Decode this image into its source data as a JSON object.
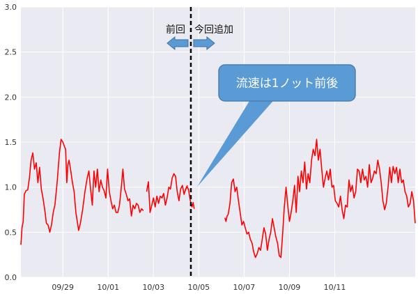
{
  "chart_data": {
    "type": "line",
    "title": "",
    "xlabel": "",
    "ylabel": "",
    "ylim": [
      0.0,
      3.0
    ],
    "xlim": [
      "09/27 19:00",
      "10/12 12:00"
    ],
    "grid": true,
    "background": "#eaeaf2",
    "y_ticks": [
      "0.0",
      "0.5",
      "1.0",
      "1.5",
      "2.0",
      "2.5",
      "3.0"
    ],
    "x_tick_labels": [
      "09/29",
      "10/01",
      "10/03",
      "10/05",
      "10/07",
      "10/09",
      "10/11"
    ],
    "series": [
      {
        "color": "#ff0000",
        "segments": [
          [
            [
              0.0,
              0.36
            ],
            [
              0.1,
              0.55
            ],
            [
              0.2,
              0.62
            ],
            [
              0.3,
              0.92
            ],
            [
              0.45,
              0.96
            ],
            [
              0.6,
              0.97
            ],
            [
              0.75,
              1.1
            ],
            [
              0.9,
              1.3
            ],
            [
              1.05,
              1.38
            ],
            [
              1.2,
              1.2
            ],
            [
              1.35,
              1.27
            ],
            [
              1.5,
              1.05
            ],
            [
              1.65,
              1.22
            ],
            [
              1.8,
              0.98
            ],
            [
              1.95,
              0.88
            ],
            [
              2.1,
              0.75
            ],
            [
              2.25,
              0.6
            ],
            [
              2.4,
              0.58
            ],
            [
              2.55,
              0.5
            ],
            [
              2.7,
              0.58
            ],
            [
              2.85,
              0.72
            ],
            [
              3.0,
              0.8
            ],
            [
              3.2,
              1.05
            ],
            [
              3.4,
              1.38
            ],
            [
              3.55,
              1.53
            ],
            [
              3.7,
              1.5
            ],
            [
              3.85,
              1.45
            ],
            [
              3.95,
              1.42
            ],
            [
              4.05,
              1.05
            ],
            [
              4.15,
              1.25
            ],
            [
              4.25,
              1.3
            ],
            [
              4.4,
              1.18
            ],
            [
              4.55,
              1.05
            ],
            [
              4.7,
              0.95
            ],
            [
              4.85,
              0.72
            ],
            [
              5.0,
              0.6
            ],
            [
              5.1,
              0.52
            ],
            [
              5.25,
              0.6
            ],
            [
              5.45,
              0.75
            ],
            [
              5.65,
              0.95
            ],
            [
              5.85,
              1.1
            ],
            [
              6.0,
              1.18
            ],
            [
              6.15,
              0.98
            ],
            [
              6.3,
              0.8
            ],
            [
              6.45,
              1.18
            ],
            [
              6.6,
              1.0
            ],
            [
              6.75,
              1.2
            ],
            [
              6.9,
              0.95
            ],
            [
              7.05,
              1.08
            ],
            [
              7.2,
              1.0
            ],
            [
              7.35,
              0.96
            ],
            [
              7.5,
              0.88
            ],
            [
              7.65,
              1.2
            ],
            [
              7.8,
              0.95
            ],
            [
              7.95,
              0.85
            ],
            [
              8.1,
              0.76
            ],
            [
              8.25,
              0.8
            ],
            [
              8.4,
              0.72
            ],
            [
              8.55,
              0.72
            ],
            [
              8.7,
              0.8
            ],
            [
              8.85,
              0.98
            ],
            [
              9.0,
              1.2
            ],
            [
              9.15,
              0.98
            ],
            [
              9.3,
              0.92
            ],
            [
              9.45,
              0.85
            ],
            [
              9.6,
              0.87
            ],
            [
              9.75,
              0.68
            ],
            [
              9.9,
              0.8
            ],
            [
              10.05,
              0.76
            ],
            [
              10.2,
              0.82
            ],
            [
              10.35,
              0.8
            ],
            [
              10.5,
              0.72
            ],
            [
              10.65,
              0.76
            ],
            [
              10.8,
              0.74
            ]
          ],
          [
            [
              11.1,
              0.95
            ],
            [
              11.25,
              1.06
            ],
            [
              11.4,
              0.72
            ],
            [
              11.55,
              0.8
            ],
            [
              11.7,
              0.88
            ],
            [
              11.85,
              0.78
            ],
            [
              12.0,
              0.9
            ],
            [
              12.15,
              0.82
            ],
            [
              12.3,
              0.9
            ],
            [
              12.45,
              0.88
            ],
            [
              12.6,
              0.93
            ],
            [
              12.75,
              0.8
            ],
            [
              12.9,
              0.88
            ],
            [
              13.05,
              1.0
            ],
            [
              13.2,
              0.98
            ],
            [
              13.35,
              1.1
            ],
            [
              13.5,
              1.15
            ],
            [
              13.65,
              1.12
            ],
            [
              13.8,
              0.95
            ],
            [
              13.95,
              0.85
            ],
            [
              14.1,
              0.98
            ],
            [
              14.25,
              1.02
            ],
            [
              14.4,
              0.92
            ],
            [
              14.55,
              0.98
            ],
            [
              14.7,
              1.02
            ]
          ],
          [
            [
              14.5,
              0.96
            ],
            [
              14.65,
              1.01
            ],
            [
              14.8,
              0.97
            ],
            [
              14.95,
              0.85
            ],
            [
              15.1,
              0.78
            ],
            [
              15.2,
              0.83
            ],
            [
              15.3,
              0.76
            ]
          ],
          [
            [
              18.0,
              0.66
            ],
            [
              18.1,
              0.62
            ],
            [
              18.2,
              0.68
            ],
            [
              18.3,
              0.7
            ],
            [
              18.45,
              0.82
            ],
            [
              18.6,
              1.05
            ],
            [
              18.75,
              1.09
            ],
            [
              18.9,
              0.95
            ],
            [
              19.05,
              1.0
            ],
            [
              19.2,
              0.85
            ],
            [
              19.35,
              0.72
            ],
            [
              19.5,
              0.58
            ],
            [
              19.65,
              0.62
            ],
            [
              19.8,
              0.55
            ],
            [
              19.95,
              0.48
            ],
            [
              20.1,
              0.5
            ],
            [
              20.25,
              0.42
            ],
            [
              20.4,
              0.38
            ],
            [
              20.55,
              0.28
            ],
            [
              20.7,
              0.22
            ],
            [
              20.85,
              0.26
            ],
            [
              21.0,
              0.33
            ],
            [
              21.15,
              0.3
            ],
            [
              21.3,
              0.42
            ],
            [
              21.45,
              0.55
            ],
            [
              21.6,
              0.48
            ],
            [
              21.75,
              0.3
            ],
            [
              21.9,
              0.42
            ],
            [
              22.05,
              0.5
            ],
            [
              22.2,
              0.65
            ],
            [
              22.35,
              0.55
            ],
            [
              22.5,
              0.45
            ],
            [
              22.65,
              0.38
            ],
            [
              22.8,
              0.24
            ],
            [
              22.95,
              0.22
            ],
            [
              23.1,
              0.48
            ],
            [
              23.25,
              0.78
            ],
            [
              23.4,
              1.0
            ],
            [
              23.55,
              0.8
            ],
            [
              23.7,
              0.62
            ],
            [
              23.85,
              0.72
            ],
            [
              24.0,
              0.85
            ],
            [
              24.15,
              1.02
            ],
            [
              24.3,
              0.72
            ],
            [
              24.45,
              1.12
            ],
            [
              24.6,
              0.95
            ],
            [
              24.75,
              1.18
            ],
            [
              24.9,
              1.05
            ],
            [
              25.05,
              1.28
            ],
            [
              25.2,
              0.98
            ],
            [
              25.35,
              1.15
            ],
            [
              25.5,
              1.05
            ],
            [
              25.65,
              1.3
            ],
            [
              25.8,
              1.42
            ],
            [
              25.95,
              1.35
            ],
            [
              26.1,
              1.53
            ],
            [
              26.25,
              1.3
            ],
            [
              26.4,
              1.42
            ],
            [
              26.55,
              1.2
            ],
            [
              26.7,
              1.0
            ],
            [
              26.85,
              1.1
            ],
            [
              27.0,
              1.18
            ],
            [
              27.15,
              1.08
            ],
            [
              27.3,
              1.2
            ],
            [
              27.45,
              1.0
            ],
            [
              27.6,
              1.02
            ],
            [
              27.75,
              0.85
            ],
            [
              27.9,
              0.82
            ],
            [
              28.05,
              0.78
            ],
            [
              28.2,
              0.9
            ],
            [
              28.35,
              0.75
            ],
            [
              28.5,
              0.65
            ],
            [
              28.65,
              0.8
            ],
            [
              28.8,
              0.78
            ],
            [
              28.95,
              1.08
            ],
            [
              29.1,
              0.95
            ],
            [
              29.25,
              1.02
            ],
            [
              29.4,
              0.88
            ],
            [
              29.55,
              0.95
            ],
            [
              29.7,
              1.2
            ],
            [
              29.85,
              1.18
            ],
            [
              30.0,
              1.05
            ],
            [
              30.15,
              1.2
            ],
            [
              30.3,
              1.08
            ],
            [
              30.45,
              1.12
            ],
            [
              30.6,
              1.0
            ],
            [
              30.75,
              1.25
            ],
            [
              30.9,
              1.05
            ],
            [
              31.05,
              1.1
            ],
            [
              31.2,
              1.18
            ],
            [
              31.35,
              1.15
            ],
            [
              31.5,
              1.3
            ],
            [
              31.65,
              1.2
            ],
            [
              31.8,
              1.05
            ],
            [
              31.95,
              0.85
            ],
            [
              32.1,
              0.75
            ],
            [
              32.25,
              0.82
            ],
            [
              32.4,
              1.0
            ],
            [
              32.55,
              1.22
            ],
            [
              32.7,
              1.05
            ],
            [
              32.85,
              1.23
            ],
            [
              33.0,
              1.15
            ],
            [
              33.15,
              1.22
            ],
            [
              33.3,
              1.05
            ],
            [
              33.45,
              1.2
            ],
            [
              33.6,
              1.05
            ],
            [
              33.75,
              1.08
            ],
            [
              33.9,
              0.95
            ],
            [
              34.05,
              0.9
            ],
            [
              34.2,
              0.78
            ],
            [
              34.35,
              0.82
            ],
            [
              34.5,
              0.95
            ],
            [
              34.65,
              0.85
            ],
            [
              34.8,
              0.6
            ]
          ]
        ]
      }
    ],
    "x_tick_positions": [
      3.7,
      7.7,
      11.7,
      15.7,
      19.7,
      23.7,
      27.7
    ],
    "x_range": [
      0.0,
      34.8
    ],
    "divider_x": 15.0,
    "annotations": {
      "left_label": "前回",
      "right_label": "今回追加",
      "callout": "流速は1ノット前後",
      "callout_fill": "#5b9bd5",
      "callout_stroke": "#4a7fb0",
      "arrow_fill": "#5b9bd5"
    }
  }
}
